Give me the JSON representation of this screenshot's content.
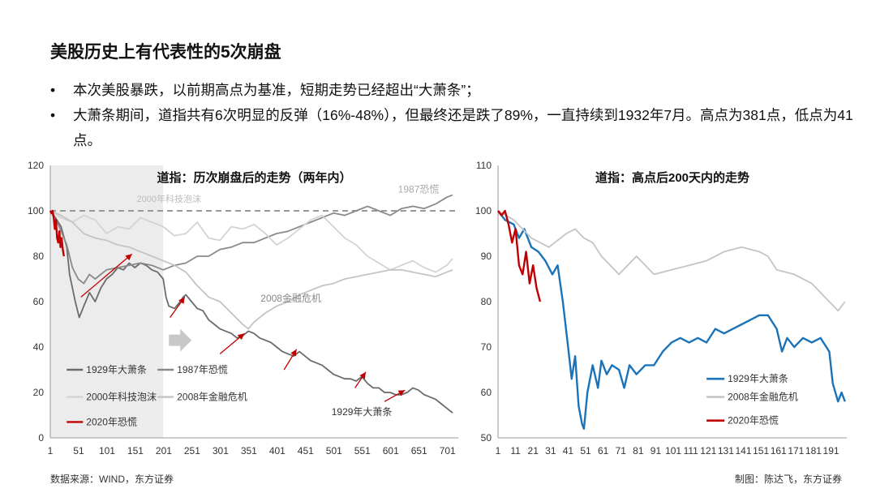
{
  "title": "美股历史上有代表性的5次崩盘",
  "bullets": [
    {
      "mark": "•",
      "text": "本次美股暴跌，以前期高点为基准，短期走势已经超出“大萧条”；"
    },
    {
      "mark": "•",
      "text": "大萧条期间，道指共有6次明显的反弹（16%-48%），但最终还是跌了89%，一直持续到1932年7月。高点为381点，低点为41点。"
    }
  ],
  "source": "数据来源：WIND，东方证券",
  "maker": "制图：陈达飞，东方证券",
  "colors": {
    "s1929": "#6b6b6b",
    "s1987": "#8a8a8a",
    "s2000": "#d3d3d3",
    "s2008": "#c4c4c4",
    "s2020": "#c00000",
    "blue": "#1a73b8",
    "arrow": "#c00000",
    "shade": "#ececec"
  },
  "chart_data": [
    {
      "type": "line",
      "title": "道指：历次崩盘后的走势（两年内）",
      "ylim": [
        0,
        120
      ],
      "yticks": [
        "0",
        "20",
        "40",
        "60",
        "80",
        "100",
        "120"
      ],
      "xlim": [
        1,
        720
      ],
      "xticks": [
        "1",
        "51",
        "101",
        "151",
        "201",
        "251",
        "301",
        "351",
        "401",
        "451",
        "501",
        "551",
        "601",
        "651",
        "701"
      ],
      "annotations": [
        "2000年科技泡沫",
        "1987恐慌",
        "2008金融危机",
        "1929年大萧条"
      ],
      "legend": [
        "1929年大萧条",
        "1987年恐慌",
        "2000年科技泡沫",
        "2008年金融危机",
        "2020年恐慌"
      ],
      "reference_line": 100,
      "shaded_range": [
        1,
        200
      ],
      "series": [
        {
          "name": "1929年大萧条",
          "key": "s1929",
          "x": [
            1,
            10,
            20,
            30,
            35,
            45,
            52,
            60,
            70,
            80,
            90,
            100,
            110,
            120,
            130,
            140,
            150,
            160,
            170,
            180,
            190,
            200,
            205,
            210,
            220,
            230,
            235,
            240,
            250,
            260,
            270,
            280,
            290,
            300,
            310,
            320,
            330,
            340,
            350,
            360,
            370,
            380,
            390,
            400,
            410,
            420,
            430,
            440,
            450,
            460,
            470,
            480,
            490,
            500,
            510,
            520,
            530,
            540,
            550,
            560,
            570,
            580,
            590,
            600,
            610,
            620,
            630,
            640,
            650,
            660,
            670,
            680,
            690,
            700,
            710
          ],
          "values": [
            100,
            97,
            93,
            84,
            72,
            60,
            53,
            58,
            64,
            60,
            66,
            70,
            72,
            75,
            74,
            77,
            75,
            77,
            76,
            74,
            73,
            70,
            62,
            58,
            57,
            60,
            62,
            63,
            60,
            57,
            56,
            52,
            50,
            48,
            47,
            46,
            44,
            45,
            47,
            46,
            44,
            43,
            42,
            40,
            38,
            37,
            36,
            38,
            36,
            34,
            33,
            32,
            30,
            28,
            27,
            26,
            26,
            25,
            27,
            24,
            22,
            22,
            20,
            20,
            19,
            19,
            20,
            22,
            21,
            19,
            18,
            17,
            15,
            13,
            11
          ]
        },
        {
          "name": "1987年恐慌",
          "key": "s1987",
          "x": [
            1,
            15,
            30,
            40,
            50,
            60,
            70,
            80,
            100,
            120,
            140,
            160,
            180,
            200,
            220,
            240,
            260,
            280,
            300,
            320,
            340,
            360,
            380,
            400,
            420,
            440,
            460,
            480,
            500,
            520,
            540,
            560,
            580,
            600,
            620,
            640,
            660,
            680,
            700,
            710
          ],
          "values": [
            100,
            94,
            85,
            75,
            70,
            68,
            72,
            70,
            74,
            75,
            76,
            77,
            76,
            74,
            76,
            77,
            80,
            80,
            83,
            84,
            86,
            86,
            88,
            90,
            91,
            93,
            95,
            97,
            99,
            98,
            100,
            102,
            100,
            98,
            101,
            102,
            101,
            103,
            106,
            107
          ]
        },
        {
          "name": "2000年科技泡沫",
          "key": "s2000",
          "x": [
            1,
            20,
            40,
            60,
            80,
            100,
            120,
            140,
            160,
            180,
            200,
            220,
            240,
            260,
            280,
            300,
            320,
            340,
            360,
            380,
            400,
            420,
            440,
            460,
            480,
            500,
            520,
            540,
            560,
            580,
            600,
            620,
            640,
            660,
            680,
            700,
            710
          ],
          "values": [
            100,
            97,
            95,
            98,
            96,
            90,
            93,
            92,
            97,
            95,
            93,
            89,
            90,
            95,
            88,
            87,
            93,
            92,
            94,
            90,
            85,
            88,
            92,
            96,
            98,
            93,
            88,
            85,
            80,
            77,
            74,
            76,
            78,
            75,
            73,
            76,
            79
          ]
        },
        {
          "name": "2008年金融危机",
          "key": "s2008",
          "x": [
            1,
            20,
            40,
            60,
            80,
            100,
            120,
            140,
            160,
            180,
            200,
            220,
            240,
            260,
            280,
            300,
            320,
            340,
            350,
            360,
            380,
            400,
            420,
            440,
            460,
            480,
            500,
            520,
            540,
            560,
            580,
            600,
            620,
            640,
            660,
            680,
            700,
            710
          ],
          "values": [
            100,
            98,
            95,
            90,
            88,
            87,
            85,
            84,
            82,
            80,
            78,
            76,
            73,
            67,
            62,
            60,
            55,
            50,
            48,
            51,
            55,
            58,
            60,
            63,
            65,
            67,
            68,
            70,
            71,
            72,
            73,
            74,
            74,
            73,
            72,
            71,
            73,
            74
          ]
        },
        {
          "name": "2020年恐慌",
          "key": "s2020",
          "x": [
            1,
            3,
            5,
            7,
            9,
            11,
            13,
            15,
            17,
            19,
            21,
            23,
            25
          ],
          "values": [
            100,
            99,
            100,
            97,
            92,
            96,
            88,
            86,
            91,
            84,
            88,
            83,
            80
          ]
        }
      ],
      "arrows": [
        {
          "from": [
            55,
            62
          ],
          "to": [
            145,
            81
          ]
        },
        {
          "from": [
            212,
            53
          ],
          "to": [
            238,
            62
          ]
        },
        {
          "from": [
            300,
            37
          ],
          "to": [
            343,
            46
          ]
        },
        {
          "from": [
            413,
            30
          ],
          "to": [
            435,
            39
          ]
        },
        {
          "from": [
            538,
            22
          ],
          "to": [
            557,
            29
          ]
        },
        {
          "from": [
            590,
            16
          ],
          "to": [
            626,
            21
          ]
        }
      ],
      "big_arrow_at": [
        230,
        43
      ]
    },
    {
      "type": "line",
      "title": "道指：高点后200天内的走势",
      "ylim": [
        50,
        110
      ],
      "yticks": [
        "50",
        "60",
        "70",
        "80",
        "90",
        "100",
        "110"
      ],
      "xlim": [
        1,
        200
      ],
      "xticks": [
        "1",
        "11",
        "21",
        "31",
        "41",
        "51",
        "61",
        "71",
        "81",
        "91",
        "101",
        "111",
        "121",
        "131",
        "141",
        "151",
        "161",
        "171",
        "181",
        "191"
      ],
      "legend": [
        "1929年大萧条",
        "2008年金融危机",
        "2020年恐慌"
      ],
      "series": [
        {
          "name": "1929年大萧条",
          "key": "blue",
          "x": [
            1,
            5,
            10,
            13,
            16,
            20,
            24,
            28,
            32,
            35,
            38,
            41,
            43,
            45,
            47,
            49,
            50,
            52,
            55,
            58,
            60,
            63,
            66,
            70,
            73,
            76,
            80,
            85,
            90,
            95,
            100,
            105,
            110,
            115,
            120,
            125,
            130,
            135,
            140,
            145,
            150,
            155,
            160,
            163,
            166,
            170,
            175,
            180,
            185,
            190,
            192,
            195,
            197,
            199
          ],
          "values": [
            100,
            98,
            97,
            94,
            96,
            92,
            91,
            89,
            86,
            88,
            80,
            70,
            63,
            68,
            57,
            53,
            52,
            60,
            66,
            61,
            67,
            64,
            66,
            65,
            61,
            66,
            64,
            66,
            66,
            69,
            71,
            72,
            71,
            72,
            71,
            74,
            73,
            74,
            75,
            76,
            77,
            77,
            74,
            69,
            72,
            70,
            72,
            71,
            72,
            69,
            62,
            58,
            60,
            58
          ]
        },
        {
          "name": "2008年金融危机",
          "key": "s2008",
          "x": [
            1,
            10,
            20,
            30,
            40,
            45,
            50,
            55,
            60,
            70,
            75,
            80,
            90,
            100,
            110,
            120,
            130,
            140,
            150,
            155,
            160,
            170,
            180,
            190,
            195,
            199
          ],
          "values": [
            100,
            98,
            94,
            92,
            95,
            96,
            94,
            93,
            90,
            86,
            88,
            90,
            86,
            87,
            88,
            89,
            91,
            92,
            91,
            90,
            87,
            86,
            84,
            80,
            78,
            80
          ]
        },
        {
          "name": "2020年恐慌",
          "key": "s2020",
          "x": [
            1,
            3,
            5,
            7,
            9,
            11,
            13,
            15,
            17,
            19,
            21,
            23,
            25
          ],
          "values": [
            100,
            99,
            100,
            97,
            93,
            96,
            88,
            86,
            91,
            84,
            88,
            83,
            80
          ]
        }
      ]
    }
  ]
}
